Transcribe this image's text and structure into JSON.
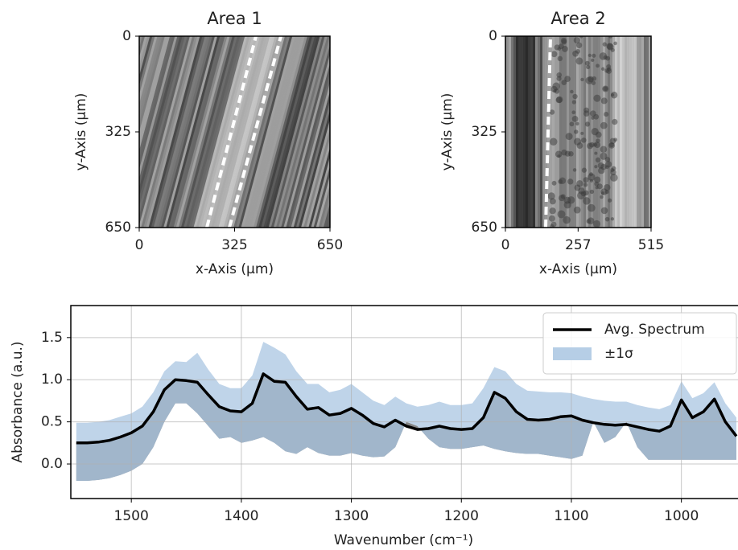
{
  "chart_data": [
    {
      "type": "image",
      "title": "Area 1",
      "xlabel": "x-Axis (μm)",
      "ylabel": "y-Axis (μm)",
      "xlim": [
        0,
        650
      ],
      "xticks": [
        0,
        325,
        650
      ],
      "ylim": [
        0,
        650
      ],
      "yticks": [
        0,
        325,
        650
      ]
    },
    {
      "type": "image",
      "title": "Area 2",
      "xlabel": "x-Axis (μm)",
      "ylabel": "y-Axis (μm)",
      "xlim": [
        0,
        515
      ],
      "xticks": [
        0,
        257,
        515
      ],
      "ylim": [
        0,
        650
      ],
      "yticks": [
        0,
        325,
        650
      ]
    },
    {
      "type": "line",
      "xlabel": "Wavenumber (cm⁻¹)",
      "ylabel": "Absorbance (a.u.)",
      "xlim": [
        1555,
        950
      ],
      "xticks": [
        1500,
        1400,
        1300,
        1200,
        1100,
        1000
      ],
      "ylim": [
        -0.41,
        1.88
      ],
      "yticks": [
        {
          "value": 0,
          "label": "0.0"
        },
        0.5,
        {
          "value": 1,
          "label": "1.0"
        },
        1.5
      ],
      "grid": true,
      "legend": "upper right",
      "x": [
        1550,
        1540,
        1530,
        1520,
        1510,
        1500,
        1490,
        1480,
        1470,
        1460,
        1450,
        1440,
        1430,
        1420,
        1410,
        1400,
        1390,
        1380,
        1370,
        1360,
        1350,
        1340,
        1330,
        1320,
        1310,
        1300,
        1290,
        1280,
        1270,
        1260,
        1250,
        1240,
        1230,
        1220,
        1210,
        1200,
        1190,
        1180,
        1170,
        1160,
        1150,
        1140,
        1130,
        1120,
        1110,
        1100,
        1090,
        1080,
        1070,
        1060,
        1050,
        1040,
        1030,
        1020,
        1010,
        1000,
        990,
        980,
        970,
        960,
        950
      ],
      "series": [
        {
          "name": "Avg. Spectrum",
          "color": "#000000",
          "values": [
            0.25,
            0.25,
            0.26,
            0.28,
            0.32,
            0.37,
            0.45,
            0.62,
            0.88,
            1.0,
            0.99,
            0.97,
            0.82,
            0.68,
            0.63,
            0.62,
            0.72,
            1.07,
            0.98,
            0.97,
            0.8,
            0.65,
            0.67,
            0.58,
            0.6,
            0.66,
            0.58,
            0.48,
            0.44,
            0.52,
            0.45,
            0.41,
            0.42,
            0.45,
            0.42,
            0.41,
            0.42,
            0.55,
            0.85,
            0.78,
            0.62,
            0.53,
            0.52,
            0.53,
            0.56,
            0.57,
            0.52,
            0.49,
            0.47,
            0.46,
            0.47,
            0.44,
            0.41,
            0.39,
            0.45,
            0.76,
            0.55,
            0.62,
            0.77,
            0.5,
            0.33
          ]
        },
        {
          "name": "±1σ",
          "color": "#a9c6e2",
          "upper": [
            0.49,
            0.49,
            0.5,
            0.52,
            0.56,
            0.6,
            0.68,
            0.85,
            1.1,
            1.22,
            1.21,
            1.32,
            1.12,
            0.95,
            0.9,
            0.9,
            1.05,
            1.45,
            1.38,
            1.3,
            1.1,
            0.95,
            0.95,
            0.85,
            0.88,
            0.95,
            0.85,
            0.75,
            0.7,
            0.8,
            0.72,
            0.68,
            0.7,
            0.74,
            0.7,
            0.7,
            0.72,
            0.9,
            1.15,
            1.1,
            0.95,
            0.87,
            0.86,
            0.85,
            0.85,
            0.84,
            0.8,
            0.77,
            0.75,
            0.74,
            0.74,
            0.7,
            0.67,
            0.65,
            0.7,
            0.98,
            0.78,
            0.84,
            0.97,
            0.72,
            0.55
          ],
          "lower": [
            -0.2,
            -0.2,
            -0.19,
            -0.17,
            -0.13,
            -0.08,
            0.0,
            0.2,
            0.5,
            0.72,
            0.72,
            0.6,
            0.45,
            0.3,
            0.32,
            0.25,
            0.28,
            0.32,
            0.25,
            0.15,
            0.12,
            0.2,
            0.13,
            0.1,
            0.1,
            0.13,
            0.1,
            0.08,
            0.09,
            0.2,
            0.5,
            0.45,
            0.3,
            0.2,
            0.18,
            0.18,
            0.2,
            0.22,
            0.18,
            0.15,
            0.13,
            0.12,
            0.12,
            0.1,
            0.08,
            0.06,
            0.1,
            0.5,
            0.25,
            0.32,
            0.5,
            0.2,
            0.05,
            0.05,
            0.05,
            0.05,
            0.05,
            0.05,
            0.05,
            0.05,
            0.05
          ]
        }
      ]
    }
  ]
}
